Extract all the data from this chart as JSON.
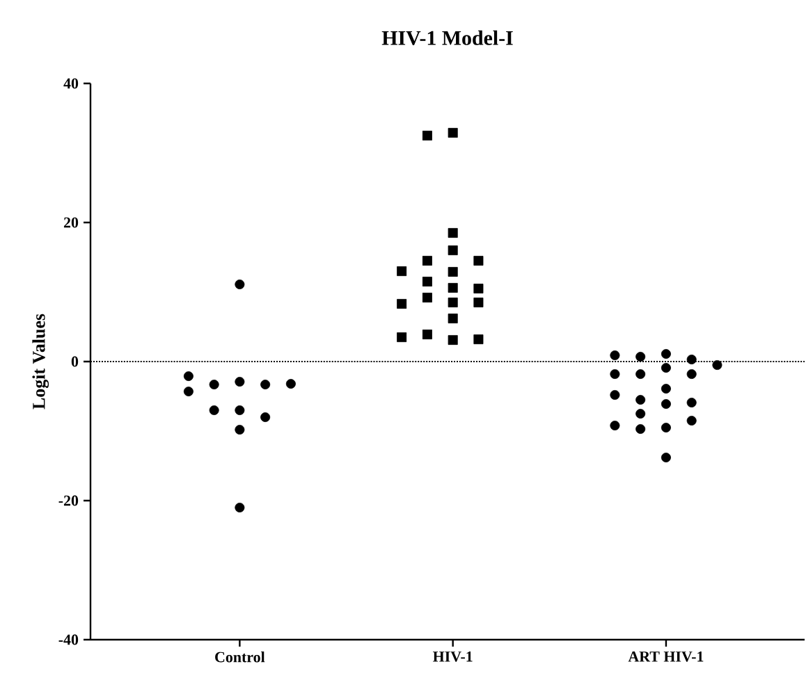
{
  "chart_data": {
    "type": "scatter",
    "title": "HIV-1 Model-I",
    "ylabel": "Logit Values",
    "categories": [
      "Control",
      "HIV-1",
      "ART HIV-1"
    ],
    "ylim": [
      -40,
      40
    ],
    "yticks": [
      -40,
      -20,
      0,
      20,
      40
    ],
    "ref_lines": [
      {
        "axis": "y",
        "value": 0,
        "line_style": "dotted",
        "color": "#000000"
      }
    ],
    "series": [
      {
        "color": "#000000",
        "marker": "circle",
        "x": [
          "Control",
          "Control",
          "Control",
          "Control",
          "Control",
          "Control",
          "Control",
          "Control",
          "Control",
          "Control",
          "Control",
          "Control"
        ],
        "values": [
          11.1,
          -2.9,
          -3.3,
          -3.3,
          -2.1,
          -4.3,
          -3.2,
          -7.0,
          -7.0,
          -8.0,
          -9.8,
          -21.0
        ]
      },
      {
        "color": "#000000",
        "marker": "square",
        "x": [
          "HIV-1",
          "HIV-1",
          "HIV-1",
          "HIV-1",
          "HIV-1",
          "HIV-1",
          "HIV-1",
          "HIV-1",
          "HIV-1",
          "HIV-1",
          "HIV-1",
          "HIV-1",
          "HIV-1",
          "HIV-1",
          "HIV-1",
          "HIV-1",
          "HIV-1",
          "HIV-1",
          "HIV-1",
          "HIV-1"
        ],
        "values": [
          32.9,
          32.5,
          18.5,
          16.0,
          14.5,
          14.5,
          12.9,
          13.0,
          11.5,
          10.6,
          10.5,
          9.2,
          8.5,
          8.5,
          8.3,
          6.2,
          3.1,
          3.9,
          3.2,
          3.5
        ]
      },
      {
        "color": "#000000",
        "marker": "circle",
        "x": [
          "ART HIV-1",
          "ART HIV-1",
          "ART HIV-1",
          "ART HIV-1",
          "ART HIV-1",
          "ART HIV-1",
          "ART HIV-1",
          "ART HIV-1",
          "ART HIV-1",
          "ART HIV-1",
          "ART HIV-1",
          "ART HIV-1",
          "ART HIV-1",
          "ART HIV-1",
          "ART HIV-1",
          "ART HIV-1",
          "ART HIV-1",
          "ART HIV-1",
          "ART HIV-1",
          "ART HIV-1"
        ],
        "values": [
          1.1,
          -0.9,
          0.7,
          -1.8,
          -3.9,
          -6.1,
          0.3,
          -1.8,
          0.9,
          -1.8,
          -0.5,
          -5.5,
          -7.5,
          -5.9,
          -4.8,
          -9.5,
          -8.5,
          -9.7,
          -9.2,
          -13.8
        ]
      }
    ]
  }
}
